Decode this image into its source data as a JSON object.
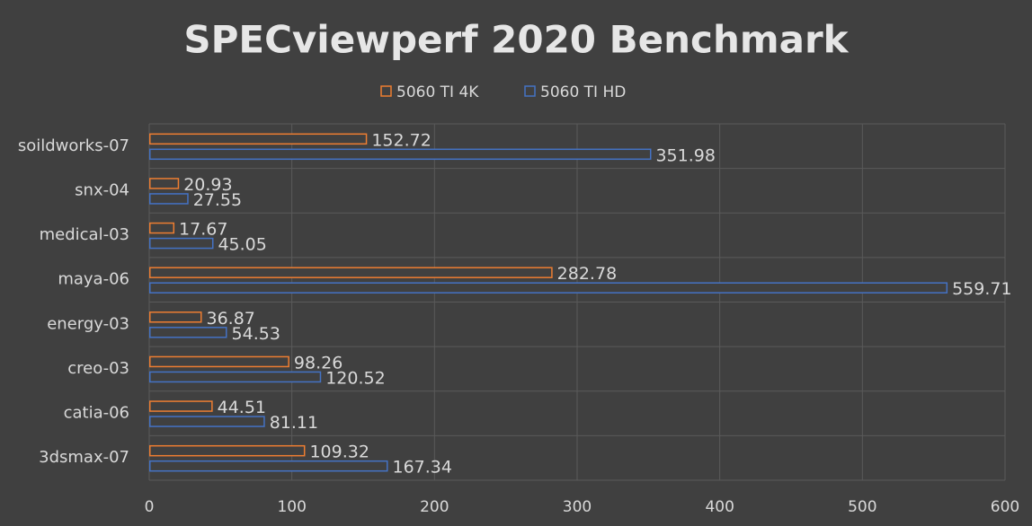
{
  "chart_data": {
    "type": "hbar",
    "title": "SPECviewperf 2020 Benchmark",
    "categories": [
      "soildworks-07",
      "snx-04",
      "medical-03",
      "maya-06",
      "energy-03",
      "creo-03",
      "catia-06",
      "3dsmax-07"
    ],
    "series": [
      {
        "name": "5060 TI 4K",
        "color": "#ed7d31",
        "values": [
          152.72,
          20.93,
          17.67,
          282.78,
          36.87,
          98.26,
          44.51,
          109.32
        ]
      },
      {
        "name": "5060 TI HD",
        "color": "#4472c4",
        "values": [
          351.98,
          27.55,
          45.05,
          559.71,
          54.53,
          120.52,
          81.11,
          167.34
        ]
      }
    ],
    "xlim": [
      0,
      600
    ],
    "xticks": [
      0,
      100,
      200,
      300,
      400,
      500,
      600
    ],
    "grid": true,
    "legend": "top"
  }
}
